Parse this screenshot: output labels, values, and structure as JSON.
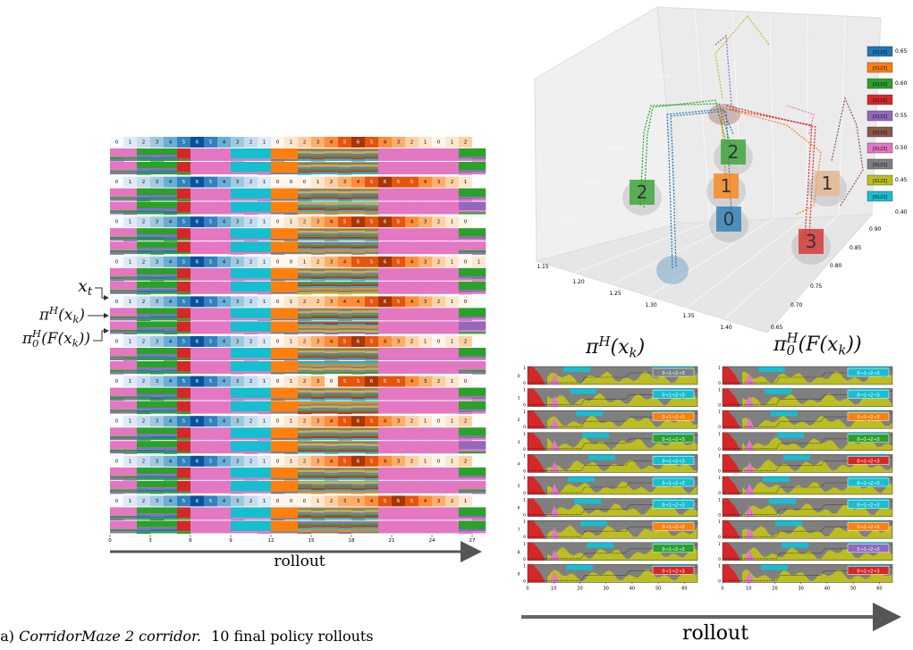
{
  "left": {
    "rows": [
      {
        "states": [
          0,
          1,
          2,
          3,
          4,
          5,
          6,
          5,
          4,
          3,
          2,
          1,
          0,
          1,
          2,
          3,
          4,
          5,
          6,
          5,
          4,
          3,
          2,
          1,
          0,
          1,
          2
        ]
      },
      {
        "states": [
          0,
          1,
          2,
          3,
          4,
          5,
          6,
          5,
          4,
          3,
          2,
          1,
          0,
          0,
          0,
          1,
          2,
          3,
          4,
          5,
          6,
          5,
          5,
          4,
          3,
          2,
          1
        ]
      },
      {
        "states": [
          0,
          1,
          2,
          3,
          4,
          5,
          6,
          5,
          4,
          3,
          2,
          1,
          0,
          1,
          2,
          3,
          4,
          5,
          6,
          5,
          6,
          5,
          4,
          3,
          2,
          1,
          0
        ]
      },
      {
        "states": [
          0,
          1,
          2,
          3,
          4,
          5,
          6,
          5,
          4,
          3,
          2,
          1,
          0,
          0,
          1,
          2,
          3,
          4,
          5,
          5,
          6,
          5,
          4,
          3,
          2,
          1,
          0,
          1
        ]
      },
      {
        "states": [
          0,
          1,
          2,
          3,
          4,
          5,
          6,
          5,
          4,
          3,
          2,
          1,
          0,
          1,
          2,
          2,
          3,
          4,
          4,
          5,
          6,
          5,
          4,
          3,
          2,
          1,
          0
        ]
      },
      {
        "states": [
          0,
          1,
          2,
          3,
          4,
          5,
          6,
          5,
          4,
          3,
          2,
          1,
          0,
          1,
          2,
          3,
          4,
          5,
          6,
          5,
          4,
          3,
          2,
          1,
          0,
          1,
          2
        ]
      },
      {
        "states": [
          0,
          1,
          2,
          3,
          4,
          5,
          6,
          5,
          4,
          3,
          2,
          1,
          0,
          1,
          2,
          3,
          0,
          5,
          5,
          6,
          5,
          5,
          4,
          3,
          2,
          1,
          0
        ]
      },
      {
        "states": [
          0,
          1,
          2,
          3,
          4,
          5,
          6,
          5,
          4,
          3,
          2,
          1,
          0,
          1,
          2,
          3,
          4,
          5,
          6,
          5,
          4,
          3,
          2,
          1,
          0,
          1,
          2
        ]
      },
      {
        "states": [
          0,
          1,
          2,
          3,
          4,
          5,
          6,
          5,
          4,
          3,
          2,
          1,
          0,
          1,
          2,
          3,
          4,
          5,
          6,
          5,
          4,
          3,
          2,
          1,
          0,
          1,
          2
        ]
      },
      {
        "states": [
          0,
          1,
          2,
          3,
          4,
          5,
          6,
          5,
          4,
          3,
          2,
          1,
          0,
          0,
          0,
          1,
          2,
          3,
          3,
          4,
          5,
          6,
          5,
          4,
          3,
          2,
          1
        ]
      }
    ],
    "labels": {
      "x_t": [
        {
          "t": "x"
        },
        {
          "t": "t",
          "pos": "sub"
        }
      ],
      "pi_h": [
        {
          "t": "π"
        },
        {
          "t": "H",
          "pos": "sup"
        },
        {
          "t": "(x"
        },
        {
          "t": "k",
          "pos": "sub"
        },
        {
          "t": ")"
        }
      ],
      "pi_0": [
        {
          "t": "π"
        },
        {
          "t": "H",
          "pos": "stack",
          "sub": "0"
        },
        {
          "t": "(F(x"
        },
        {
          "t": "k",
          "pos": "sub"
        },
        {
          "t": "))"
        }
      ]
    },
    "xticks": [
      "0",
      "3",
      "6",
      "9",
      "12",
      "15",
      "18",
      "21",
      "24",
      "27"
    ],
    "xlabel": "rollout"
  },
  "caption": {
    "tag": "(a)",
    "name": "CorridorMaze 2 corridor.",
    "text": "10 final policy rollouts"
  },
  "plot3d": {
    "xticks": [
      "1.15",
      "1.20",
      "1.25",
      "1.30",
      "1.35",
      "1.40"
    ],
    "yticks": [
      "0.65",
      "0.70",
      "0.75",
      "0.80",
      "0.85",
      "0.90"
    ],
    "zticks": [
      "0.65",
      "0.60",
      "0.55",
      "0.50",
      "0.45",
      "0.40"
    ],
    "legend": [
      {
        "label": "[0123]",
        "color": "#1f77b4"
      },
      {
        "label": "[0123]",
        "color": "#ff7f0e"
      },
      {
        "label": "[0123]",
        "color": "#2ca02c"
      },
      {
        "label": "[0123]",
        "color": "#d62728"
      },
      {
        "label": "[0123]",
        "color": "#9467bd"
      },
      {
        "label": "[0123]",
        "color": "#8c564b"
      },
      {
        "label": "[0123]",
        "color": "#e377c2"
      },
      {
        "label": "[0123]",
        "color": "#7f7f7f"
      },
      {
        "label": "[0123]",
        "color": "#bcbd22"
      },
      {
        "label": "[0123]",
        "color": "#17becf"
      }
    ],
    "goals": [
      {
        "label": "2",
        "color": "#2ca02c"
      },
      {
        "label": "2",
        "color": "#2ca02c"
      },
      {
        "label": "1",
        "color": "#ff7f0e"
      },
      {
        "label": "0",
        "color": "#1f77b4"
      },
      {
        "label": "1",
        "color": "#e8b58a"
      },
      {
        "label": "3",
        "color": "#d62728"
      }
    ]
  },
  "policy": {
    "titles": [
      [
        {
          "t": "π"
        },
        {
          "t": "H",
          "pos": "sup"
        },
        {
          "t": "(x"
        },
        {
          "t": "k",
          "pos": "sub"
        },
        {
          "t": ")"
        }
      ],
      [
        {
          "t": "π"
        },
        {
          "t": "H",
          "pos": "stack",
          "sub": "0"
        },
        {
          "t": "(F(x"
        },
        {
          "t": "k",
          "pos": "sub"
        },
        {
          "t": "))"
        }
      ]
    ],
    "panel_label": "0→1→2→3",
    "row_labels": [
      "0",
      "1",
      "2",
      "3",
      "4",
      "5",
      "6",
      "7",
      "8",
      "9"
    ],
    "yticks": [
      "0",
      "1"
    ],
    "xticks": [
      "0",
      "10",
      "20",
      "30",
      "40",
      "50",
      "60"
    ],
    "xlabel": "rollout"
  }
}
